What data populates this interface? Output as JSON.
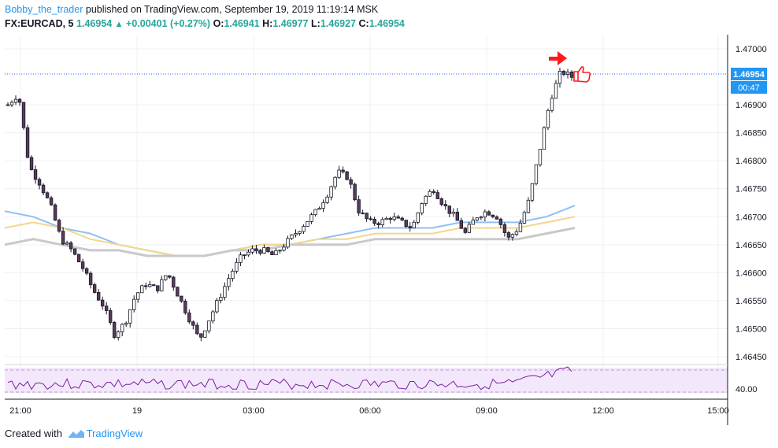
{
  "header": {
    "author": "Bobby_the_trader",
    "published": "published on TradingView.com, September 19, 2019 11:19:14 MSK"
  },
  "ohlc": {
    "symbol": "FX:EURCAD, 5",
    "last": "1.46954",
    "change": "+0.00401 (+0.27%)",
    "o_label": "O:",
    "o": "1.46941",
    "h_label": "H:",
    "h": "1.46977",
    "l_label": "L:",
    "l": "1.46927",
    "c_label": "C:",
    "c": "1.46954"
  },
  "footer": {
    "created": "Created with",
    "brand": "TradingView"
  },
  "colors": {
    "up": "#26a69a",
    "candle_body": "#5d3a5c",
    "wick": "#131722",
    "ma_blue": "#90bff5",
    "ma_yellow": "#f5d58a",
    "ma_gray": "#c9c9c9",
    "rsi_line": "#7b1fa2",
    "rsi_band": "#f0e4fa",
    "price_line": "#2962ff",
    "price_label_bg": "#2196f3",
    "arrow": "#ff0000"
  },
  "icons": {
    "arrow": "red-arrow-icon",
    "thumb": "thumbs-up-icon",
    "logo": "tradingview-logo-icon"
  },
  "chart_data": {
    "type": "candlestick",
    "timeframe": "5",
    "symbol": "FX:EURCAD",
    "ylim": [
      1.4642,
      1.4703
    ],
    "y_ticks": [
      "1.47000",
      "1.46900",
      "1.46850",
      "1.46800",
      "1.46750",
      "1.46700",
      "1.46650",
      "1.46600",
      "1.46550",
      "1.46500",
      "1.46450"
    ],
    "x_ticks": [
      "21:00",
      "19",
      "03:00",
      "06:00",
      "09:00",
      "12:00",
      "15:00"
    ],
    "price_label": "1.46954",
    "countdown": "00:47",
    "rsi_tick": "40.00",
    "close_profile": [
      1.469,
      1.4692,
      1.4679,
      1.4676,
      1.4672,
      1.4666,
      1.4664,
      1.4661,
      1.4657,
      1.4654,
      1.4649,
      1.4651,
      1.4656,
      1.4658,
      1.4657,
      1.466,
      1.4656,
      1.4652,
      1.4648,
      1.4652,
      1.4656,
      1.466,
      1.4663,
      1.4664,
      1.4664,
      1.4663,
      1.4665,
      1.4667,
      1.4669,
      1.4671,
      1.4674,
      1.4678,
      1.4677,
      1.4671,
      1.4669,
      1.4669,
      1.467,
      1.4669,
      1.4668,
      1.4673,
      1.4675,
      1.4672,
      1.467,
      1.4667,
      1.467,
      1.4671,
      1.467,
      1.4666,
      1.4668,
      1.4673,
      1.4682,
      1.4691,
      1.4696,
      1.4695
    ],
    "ma_blue": [
      1.4671,
      1.467,
      1.4668,
      1.4667,
      1.4665,
      1.4664,
      1.4663,
      1.4663,
      1.4664,
      1.4665,
      1.4665,
      1.4666,
      1.4667,
      1.4668,
      1.4668,
      1.4668,
      1.4669,
      1.4669,
      1.4669,
      1.467,
      1.4672
    ],
    "ma_yellow": [
      1.4668,
      1.4669,
      1.4668,
      1.4666,
      1.4665,
      1.4664,
      1.4663,
      1.4663,
      1.4664,
      1.4665,
      1.4665,
      1.4666,
      1.4666,
      1.4667,
      1.4667,
      1.4667,
      1.4668,
      1.4668,
      1.4668,
      1.4669,
      1.467
    ],
    "ma_gray": [
      1.4665,
      1.4666,
      1.4665,
      1.4664,
      1.4664,
      1.4663,
      1.4663,
      1.4663,
      1.4664,
      1.4664,
      1.4665,
      1.4665,
      1.4665,
      1.4666,
      1.4666,
      1.4666,
      1.4666,
      1.4666,
      1.4666,
      1.4667,
      1.4668
    ]
  }
}
